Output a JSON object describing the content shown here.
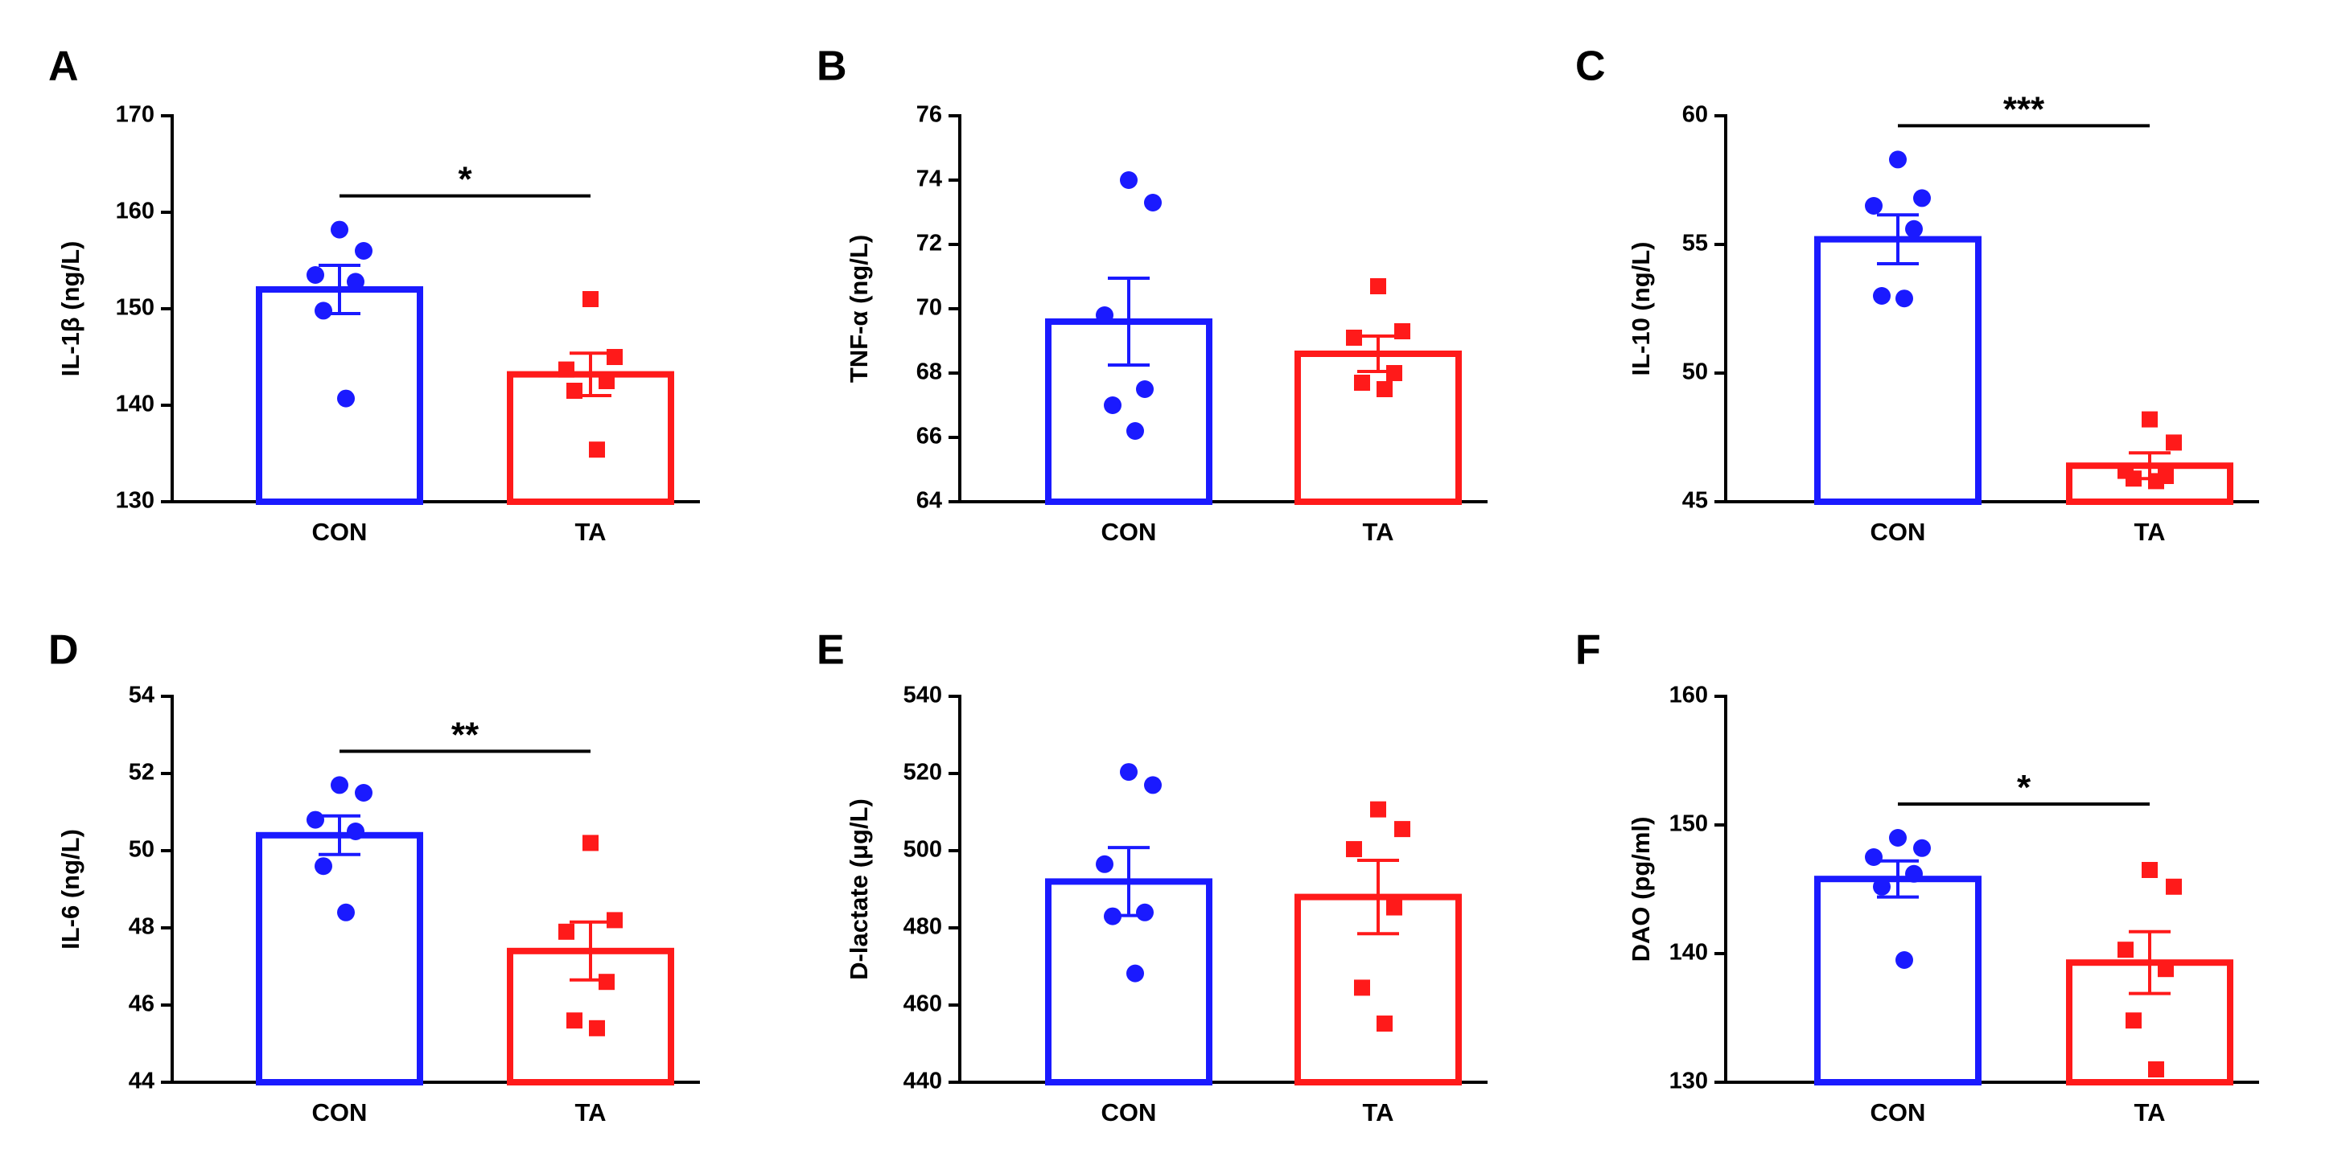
{
  "colors": {
    "con": "#1a1aff",
    "ta": "#ff1a1a",
    "axis": "#000000"
  },
  "chart_data": [
    {
      "panel": "A",
      "type": "bar",
      "ylabel": "IL-1β (ng/L)",
      "ylim": [
        130,
        170
      ],
      "yticks": [
        130,
        140,
        150,
        160,
        170
      ],
      "ytick_labels": [
        "130",
        "140",
        "150",
        "160",
        "170"
      ],
      "categories": [
        "CON",
        "TA"
      ],
      "series": [
        {
          "name": "CON",
          "mean": 152.0,
          "sem": 2.5,
          "points": [
            158.2,
            156.0,
            153.5,
            152.8,
            149.8,
            140.7
          ]
        },
        {
          "name": "TA",
          "mean": 143.2,
          "sem": 2.2,
          "points": [
            151.0,
            145.0,
            143.7,
            142.5,
            141.5,
            135.4
          ]
        }
      ],
      "significance": "*"
    },
    {
      "panel": "B",
      "type": "bar",
      "ylabel": "TNF-α (ng/L)",
      "ylim": [
        64,
        76
      ],
      "yticks": [
        64,
        66,
        68,
        70,
        72,
        74,
        76
      ],
      "ytick_labels": [
        "64",
        "66",
        "68",
        "70",
        "72",
        "74",
        "76"
      ],
      "categories": [
        "CON",
        "TA"
      ],
      "series": [
        {
          "name": "CON",
          "mean": 69.6,
          "sem": 1.35,
          "points": [
            74.0,
            73.3,
            69.8,
            67.5,
            67.0,
            66.2
          ]
        },
        {
          "name": "TA",
          "mean": 68.6,
          "sem": 0.55,
          "points": [
            70.7,
            69.3,
            69.1,
            68.0,
            67.7,
            67.5
          ]
        }
      ],
      "significance": ""
    },
    {
      "panel": "C",
      "type": "bar",
      "ylabel": "IL-10 (ng/L)",
      "ylim": [
        45,
        60
      ],
      "yticks": [
        45,
        50,
        55,
        60
      ],
      "ytick_labels": [
        "45",
        "50",
        "55",
        "60"
      ],
      "categories": [
        "CON",
        "TA"
      ],
      "series": [
        {
          "name": "CON",
          "mean": 55.2,
          "sem": 0.95,
          "points": [
            58.3,
            56.8,
            56.5,
            55.6,
            53.0,
            52.9
          ]
        },
        {
          "name": "TA",
          "mean": 46.4,
          "sem": 0.5,
          "points": [
            48.2,
            47.3,
            46.2,
            46.0,
            45.9,
            45.8
          ]
        }
      ],
      "significance": "***"
    },
    {
      "panel": "D",
      "type": "bar",
      "ylabel": "IL-6 (ng/L)",
      "ylim": [
        44,
        54
      ],
      "yticks": [
        44,
        46,
        48,
        50,
        52,
        54
      ],
      "ytick_labels": [
        "44",
        "46",
        "48",
        "50",
        "52",
        "54"
      ],
      "categories": [
        "CON",
        "TA"
      ],
      "series": [
        {
          "name": "CON",
          "mean": 50.4,
          "sem": 0.5,
          "points": [
            51.7,
            51.5,
            50.8,
            50.5,
            49.6,
            48.4
          ]
        },
        {
          "name": "TA",
          "mean": 47.4,
          "sem": 0.75,
          "points": [
            50.2,
            48.2,
            47.9,
            46.6,
            45.6,
            45.4
          ]
        }
      ],
      "significance": "**"
    },
    {
      "panel": "E",
      "type": "bar",
      "ylabel": "D-lactate (μg/L)",
      "ylim": [
        440,
        540
      ],
      "yticks": [
        440,
        460,
        480,
        500,
        520,
        540
      ],
      "ytick_labels": [
        "440",
        "460",
        "480",
        "500",
        "520",
        "540"
      ],
      "categories": [
        "CON",
        "TA"
      ],
      "series": [
        {
          "name": "CON",
          "mean": 492.0,
          "sem": 8.8,
          "points": [
            520.4,
            517.0,
            496.5,
            484.0,
            483.0,
            468.2
          ]
        },
        {
          "name": "TA",
          "mean": 488.0,
          "sem": 9.5,
          "points": [
            510.7,
            505.6,
            500.4,
            485.3,
            464.5,
            455.2
          ]
        }
      ],
      "significance": ""
    },
    {
      "panel": "F",
      "type": "bar",
      "ylabel": "DAO (pg/ml)",
      "ylim": [
        130,
        160
      ],
      "yticks": [
        130,
        140,
        150,
        160
      ],
      "ytick_labels": [
        "130",
        "140",
        "150",
        "160"
      ],
      "categories": [
        "CON",
        "TA"
      ],
      "series": [
        {
          "name": "CON",
          "mean": 145.8,
          "sem": 1.4,
          "points": [
            149.0,
            148.2,
            147.5,
            146.2,
            145.2,
            139.5
          ]
        },
        {
          "name": "TA",
          "mean": 139.3,
          "sem": 2.4,
          "points": [
            146.5,
            145.2,
            140.3,
            138.8,
            134.8,
            131.0
          ]
        }
      ],
      "significance": "*"
    }
  ]
}
